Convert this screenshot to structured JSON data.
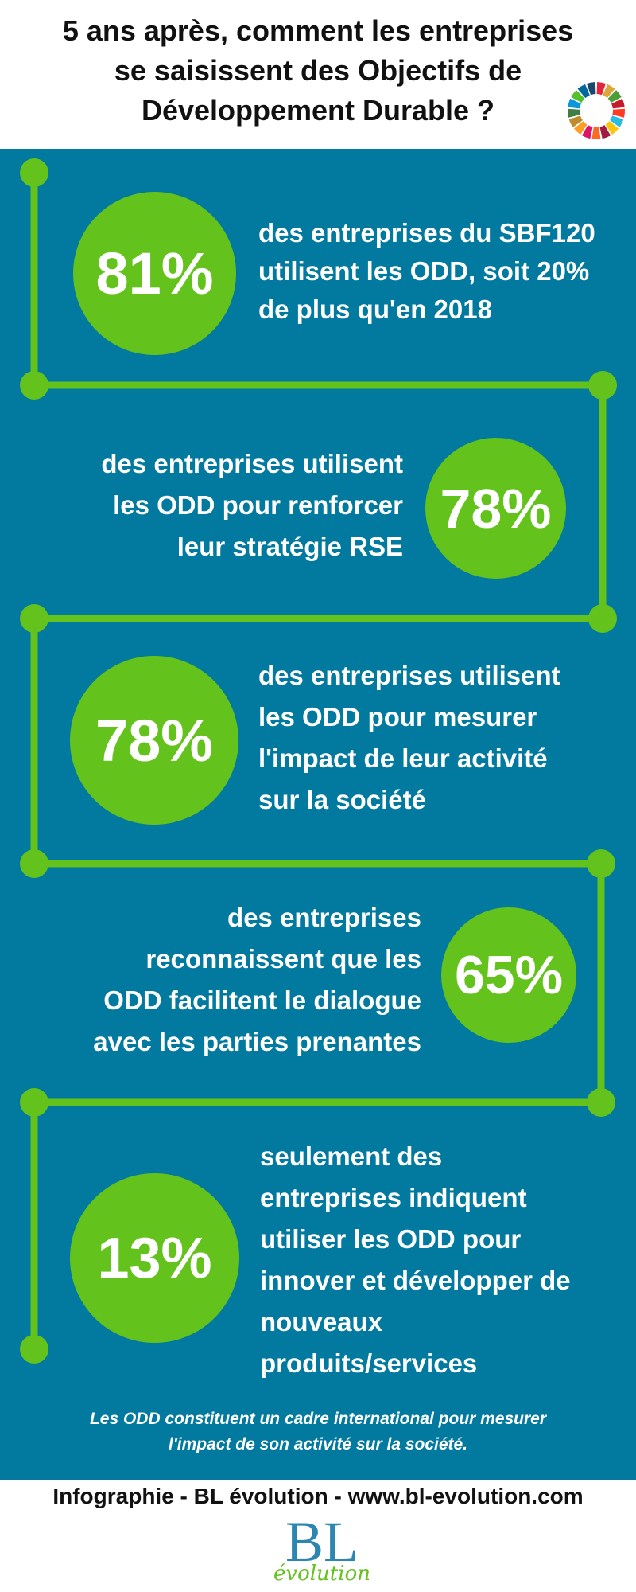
{
  "header": {
    "title_lines": [
      "5 ans après, comment les entreprises",
      "se saisissent des Objectifs de",
      "Développement Durable ?"
    ],
    "sdg_icon": "sdg-color-wheel-icon",
    "sdg_colors": [
      "#e5243b",
      "#dda63a",
      "#4c9f38",
      "#c5192d",
      "#ff3a21",
      "#26bde2",
      "#fcc30b",
      "#a21942",
      "#fd6925",
      "#dd1367",
      "#fd9d24",
      "#bf8b2e",
      "#3f7e44",
      "#0a97d9",
      "#56c02b",
      "#00689d",
      "#19486a"
    ]
  },
  "colors": {
    "panel": "#02799e",
    "accent_green": "#63c21b",
    "text_light": "#ffffff"
  },
  "stats": [
    {
      "value": "81%",
      "lines": [
        "des entreprises du SBF120",
        "utilisent les ODD, soit 20%",
        "de plus qu'en 2018"
      ]
    },
    {
      "value": "78%",
      "lines": [
        "des entreprises utilisent",
        "les ODD pour renforcer",
        "leur stratégie RSE"
      ]
    },
    {
      "value": "78%",
      "lines": [
        "des entreprises utilisent",
        "les ODD pour mesurer",
        "l'impact de leur activité",
        "sur la société"
      ]
    },
    {
      "value": "65%",
      "lines": [
        "des entreprises",
        "reconnaissent que les",
        "ODD facilitent le dialogue",
        "avec les parties prenantes"
      ]
    },
    {
      "value": "13%",
      "lines": [
        "seulement des",
        "entreprises indiquent",
        "utiliser les ODD pour",
        "innover et développer de",
        "nouveaux",
        "produits/services"
      ]
    }
  ],
  "footnote_lines": [
    "Les ODD constituent un cadre international pour mesurer",
    "l'impact de son activité sur la société."
  ],
  "footer": {
    "credit": "Infographie - BL évolution -  www.bl-evolution.com",
    "logo_main": "BL",
    "logo_sub": "évolution"
  }
}
